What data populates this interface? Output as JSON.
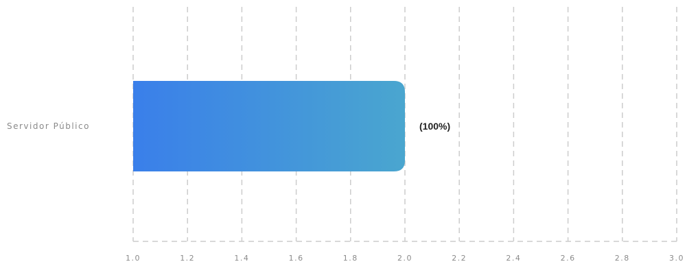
{
  "chart_data": {
    "type": "bar",
    "orientation": "horizontal",
    "categories": [
      "Servidor Público"
    ],
    "values": [
      2.0
    ],
    "data_labels": [
      "(100%)"
    ],
    "xlim": [
      1.0,
      3.0
    ],
    "x_ticks": [
      "1.0",
      "1.2",
      "1.4",
      "1.6",
      "1.8",
      "2.0",
      "2.2",
      "2.4",
      "2.6",
      "2.8",
      "3.0"
    ],
    "title": "",
    "xlabel": "",
    "ylabel": "",
    "grid": true,
    "grid_style": "dashed",
    "bar_gradient": [
      "#3a7fea",
      "#4aa6cf"
    ]
  }
}
